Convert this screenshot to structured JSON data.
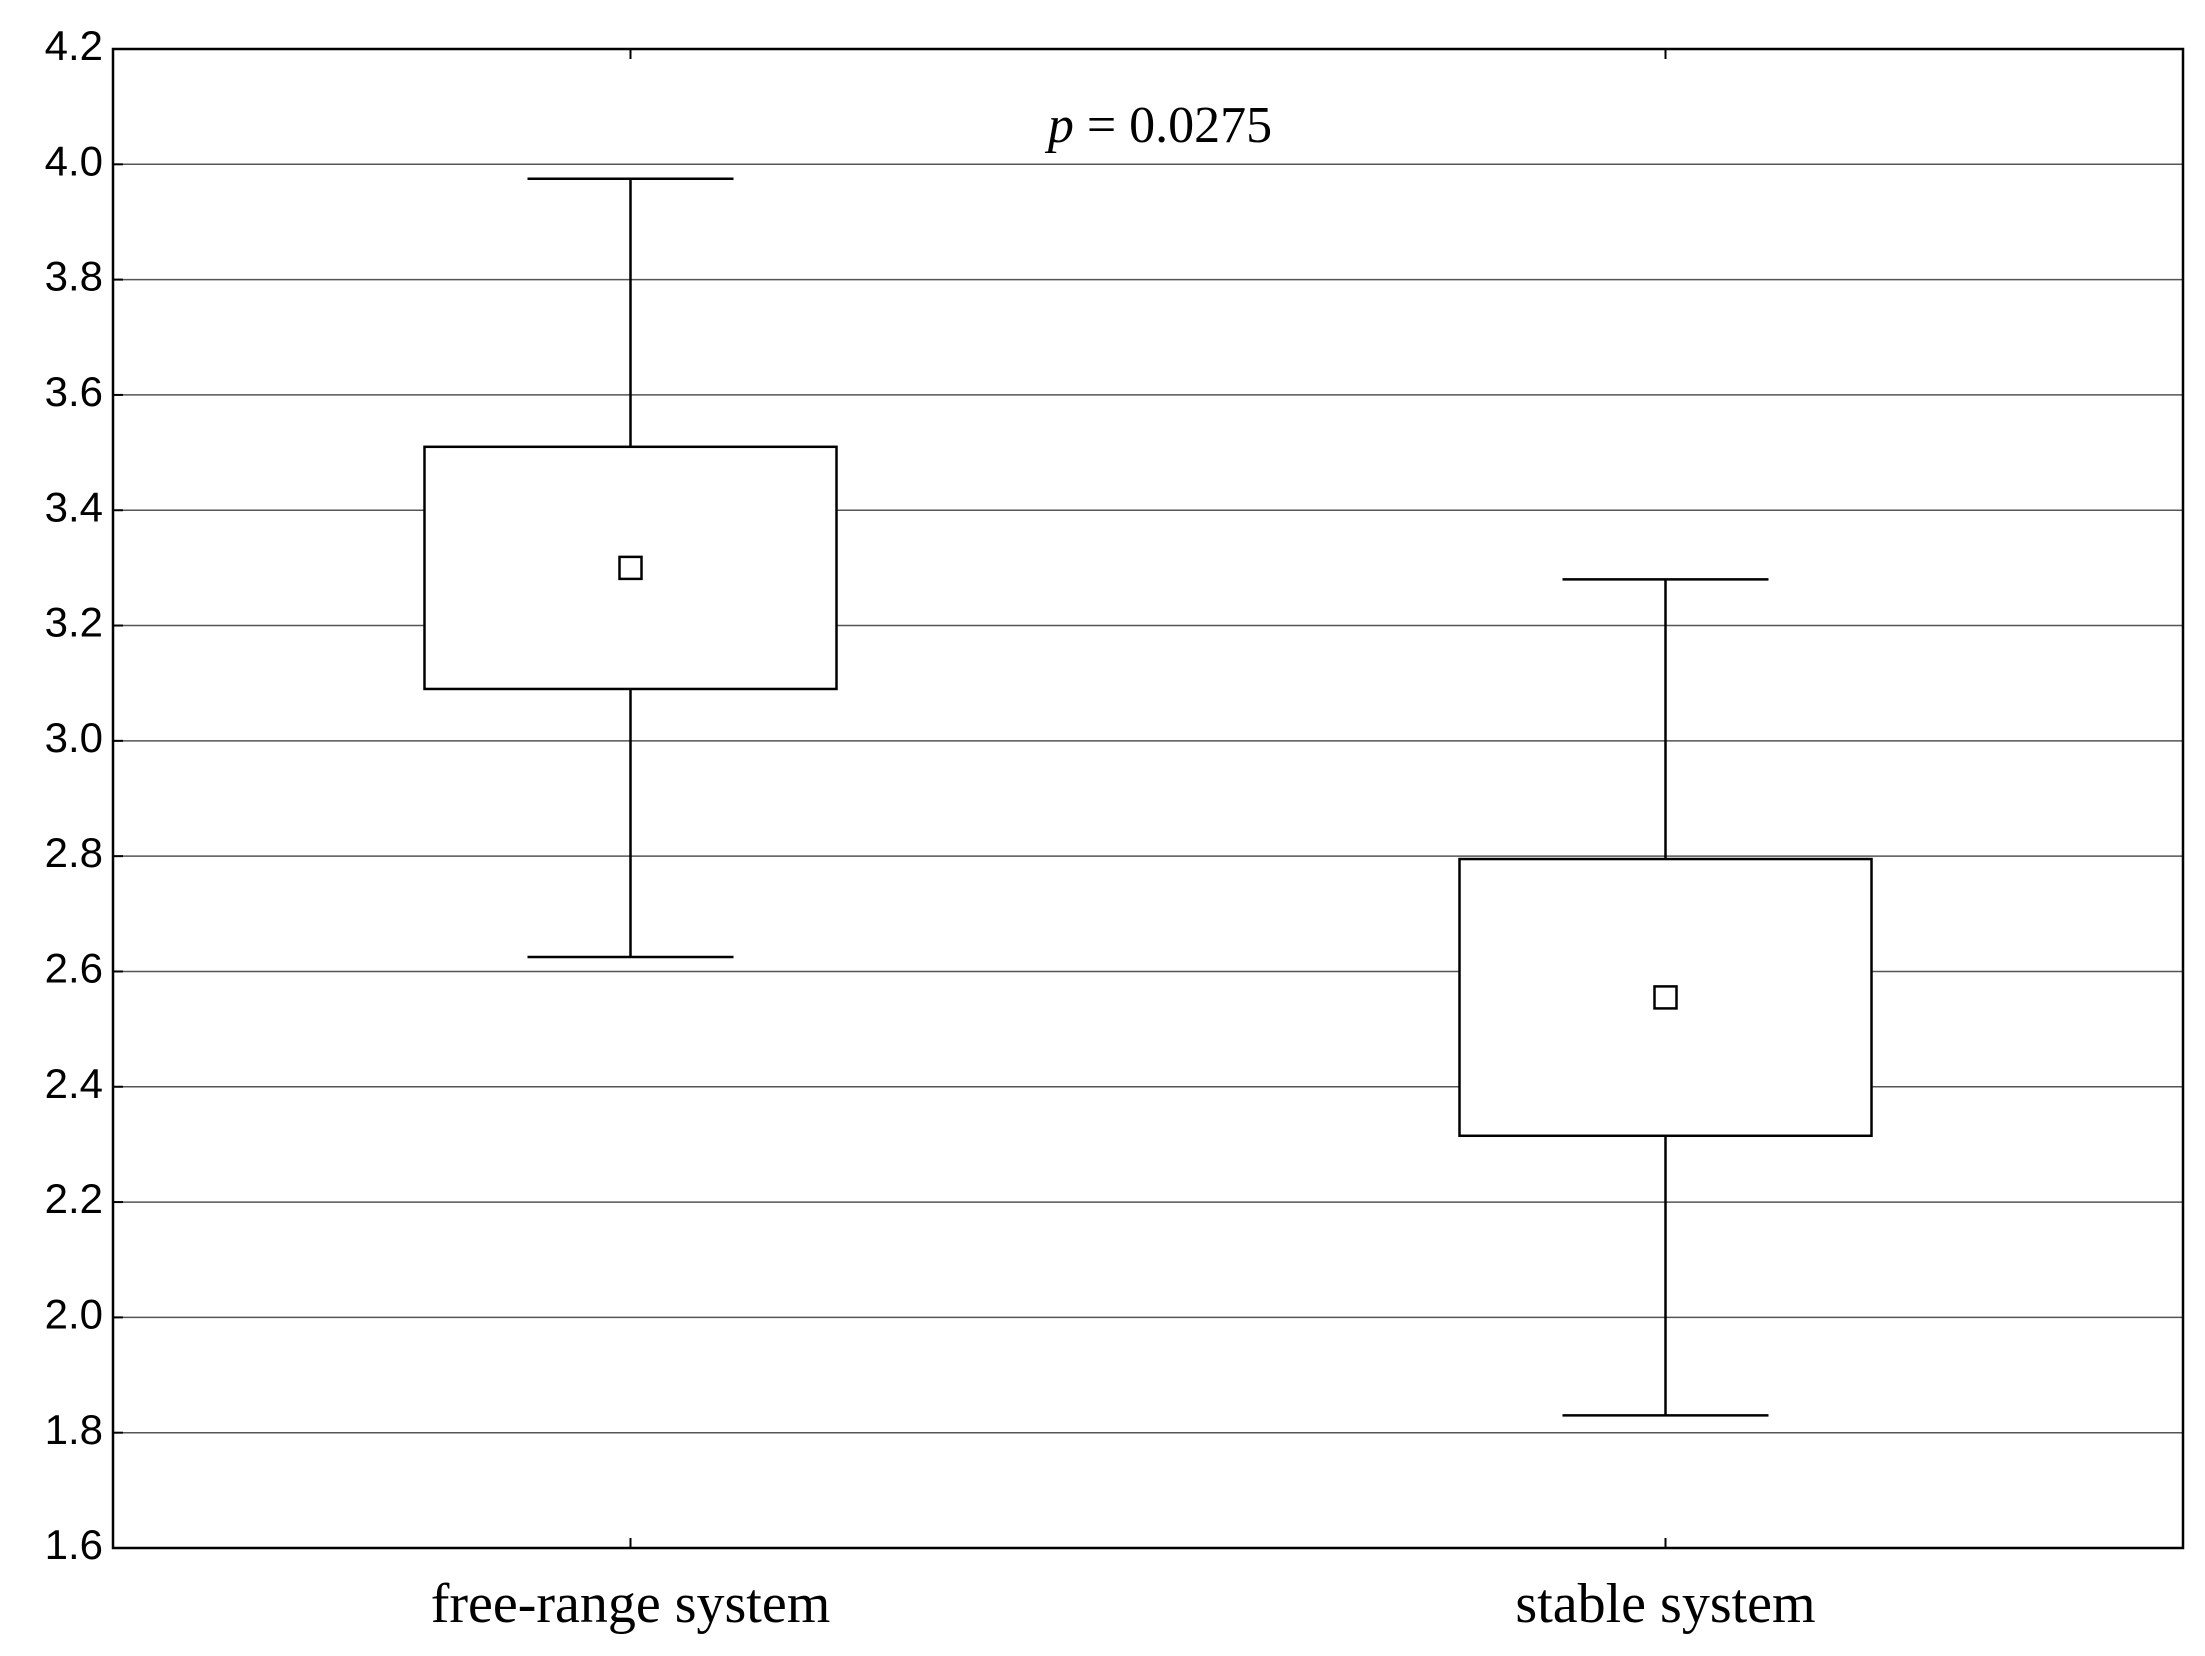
{
  "chart_data": {
    "type": "box",
    "categories": [
      "free-range system",
      "stable system"
    ],
    "mean": [
      3.3,
      2.555
    ],
    "box_low": [
      3.09,
      2.315
    ],
    "box_high": [
      3.51,
      2.795
    ],
    "whisker_low": [
      2.625,
      1.83
    ],
    "whisker_high": [
      3.975,
      3.28
    ],
    "annotation": {
      "symbol": "p",
      "text": "= 0.0275"
    },
    "ylim": [
      1.6,
      4.2
    ],
    "yticks": [
      1.6,
      1.8,
      {
        "value": 2,
        "label": "2.0"
      },
      2.2,
      2.4,
      2.6,
      2.8,
      {
        "value": 3,
        "label": "3.0"
      },
      3.2,
      3.4,
      3.6,
      3.8,
      {
        "value": 4,
        "label": "4.0"
      },
      4.2
    ],
    "grid": true,
    "color": "#000000"
  }
}
